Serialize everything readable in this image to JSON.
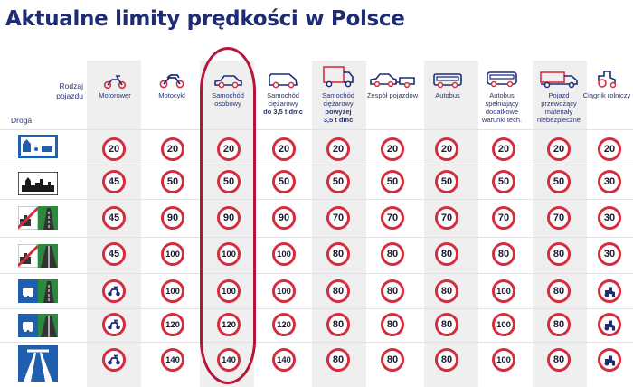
{
  "title": "Aktualne limity prędkości w Polsce",
  "header": {
    "corner_top": "Rodzaj pojazdu",
    "corner_bottom": "Droga"
  },
  "columns": [
    {
      "label": "Motorower",
      "icon": "moped-icon"
    },
    {
      "label": "Motocykl",
      "icon": "motorcycle-icon"
    },
    {
      "label": "Samochód osobowy",
      "icon": "car-icon"
    },
    {
      "label_a": "Samochód ciężarowy",
      "label_b": "do 3,5 t dmc",
      "icon": "van-icon"
    },
    {
      "label_a": "Samochód ciężarowy",
      "label_b": "powyżej",
      "label_c": "3,5 t dmc",
      "icon": "truck-icon"
    },
    {
      "label": "Zespół pojazdów",
      "icon": "car-trailer-icon"
    },
    {
      "label": "Autobus",
      "icon": "bus-icon"
    },
    {
      "label": "Autobus spełniający dodatkowe warunki tech.",
      "icon": "coach-icon"
    },
    {
      "label": "Pojazd przewożący materiały niebezpieczne",
      "icon": "hazmat-truck-icon"
    },
    {
      "label": "Ciągnik rolniczy",
      "icon": "tractor-icon"
    }
  ],
  "rows": [
    {
      "road": "residential-zone-icon",
      "values": [
        "20",
        "20",
        "20",
        "20",
        "20",
        "20",
        "20",
        "20",
        "20",
        "20"
      ]
    },
    {
      "road": "built-up-area-icon",
      "values": [
        "45",
        "50",
        "50",
        "50",
        "50",
        "50",
        "50",
        "50",
        "50",
        "30"
      ]
    },
    {
      "road": "single-carriageway-icon",
      "values": [
        "45",
        "90",
        "90",
        "90",
        "70",
        "70",
        "70",
        "70",
        "70",
        "30"
      ]
    },
    {
      "road": "dual-carriageway-icon",
      "values": [
        "45",
        "100",
        "100",
        "100",
        "80",
        "80",
        "80",
        "80",
        "80",
        "30"
      ]
    },
    {
      "road": "expressway-single-icon",
      "values": [
        "moped-forbidden",
        "100",
        "100",
        "100",
        "80",
        "80",
        "80",
        "100",
        "80",
        "tractor-forbidden"
      ]
    },
    {
      "road": "expressway-dual-icon",
      "values": [
        "moped-forbidden",
        "120",
        "120",
        "120",
        "80",
        "80",
        "80",
        "100",
        "80",
        "tractor-forbidden"
      ]
    },
    {
      "road": "motorway-icon",
      "values": [
        "moped-forbidden",
        "140",
        "140",
        "140",
        "80",
        "80",
        "80",
        "100",
        "80",
        "tractor-forbidden"
      ]
    }
  ],
  "colors": {
    "title": "#1e2c75",
    "sign_border": "#d42d3f",
    "highlight": "#b5173a",
    "road_blue": "#1f5fae",
    "road_green": "#2b8a3e"
  }
}
